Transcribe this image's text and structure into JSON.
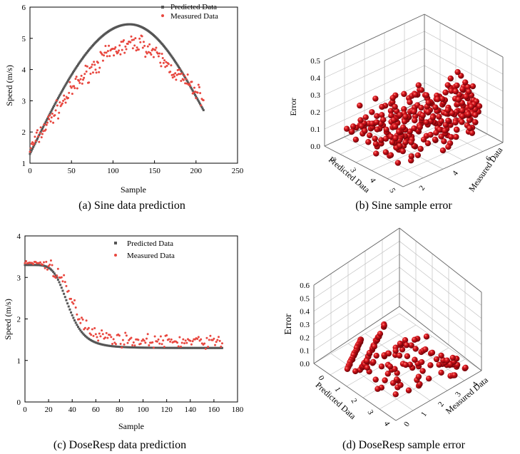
{
  "captions": {
    "a": "(a) Sine data prediction",
    "b": "(b) Sine sample error",
    "c": "(c) DoseResp data prediction",
    "d": "(d) DoseResp sample error"
  },
  "colors": {
    "predicted": "#555555",
    "measured": "#e8473f",
    "sphere": "#c0111a"
  },
  "chart_data": [
    {
      "id": "a",
      "type": "scatter",
      "title": "(a) Sine data prediction",
      "xlabel": "Sample",
      "ylabel": "Speed (m/s)",
      "xlim": [
        0,
        250
      ],
      "ylim": [
        1,
        6
      ],
      "xticks": [
        "0",
        "50",
        "100",
        "150",
        "200",
        "250"
      ],
      "yticks": [
        "1",
        "2",
        "3",
        "4",
        "5",
        "6"
      ],
      "legend": [
        "Predicted Data",
        "Measured Data"
      ],
      "legend_position": "top-right",
      "series": [
        {
          "name": "Predicted Data",
          "model": "sine",
          "n": 210,
          "start": 1.3,
          "peak": 5.45,
          "peak_x": 120,
          "end": 2.7
        },
        {
          "name": "Measured Data",
          "n": 210,
          "trend": "noisy sine",
          "approx_peak": 4.85,
          "approx_end": 3.1
        }
      ]
    },
    {
      "id": "b",
      "type": "scatter3d",
      "title": "(b) Sine sample error",
      "xlabel": "Predicted Data",
      "ylabel": "Measured Data",
      "zlabel": "Error",
      "xticks": [
        "2",
        "3",
        "4",
        "5"
      ],
      "yticks": [
        "2",
        "4",
        "6"
      ],
      "zticks": [
        "0.0",
        "0.1",
        "0.2",
        "0.3",
        "0.4",
        "0.5"
      ],
      "zlim": [
        0,
        0.5
      ]
    },
    {
      "id": "c",
      "type": "scatter",
      "title": "(c) DoseResp data prediction",
      "xlabel": "Sample",
      "ylabel": "Speed (m/s)",
      "xlim": [
        0,
        180
      ],
      "ylim": [
        0,
        4
      ],
      "xticks": [
        "0",
        "20",
        "40",
        "60",
        "80",
        "100",
        "120",
        "140",
        "160",
        "180"
      ],
      "yticks": [
        "0",
        "1",
        "2",
        "3",
        "4"
      ],
      "legend": [
        "Predicted Data",
        "Measured Data"
      ],
      "legend_position": "top-center",
      "series": [
        {
          "name": "Predicted Data",
          "model": "dose-response",
          "n": 168,
          "top": 3.3,
          "bottom": 1.3,
          "x50": 37
        },
        {
          "name": "Measured Data",
          "n": 168,
          "trend": "noisy dose-response",
          "approx_tail": 1.45
        }
      ]
    },
    {
      "id": "d",
      "type": "scatter3d",
      "title": "(d) DoseResp sample error",
      "xlabel": "Predicted Data",
      "ylabel": "Measured Data",
      "zlabel": "Error",
      "xticks": [
        "0",
        "1",
        "2",
        "3",
        "4"
      ],
      "yticks": [
        "0",
        "1",
        "2",
        "3",
        "4"
      ],
      "zticks": [
        "0.0",
        "0.1",
        "0.2",
        "0.3",
        "0.4",
        "0.5",
        "0.6"
      ],
      "zlim": [
        0,
        0.6
      ]
    }
  ]
}
